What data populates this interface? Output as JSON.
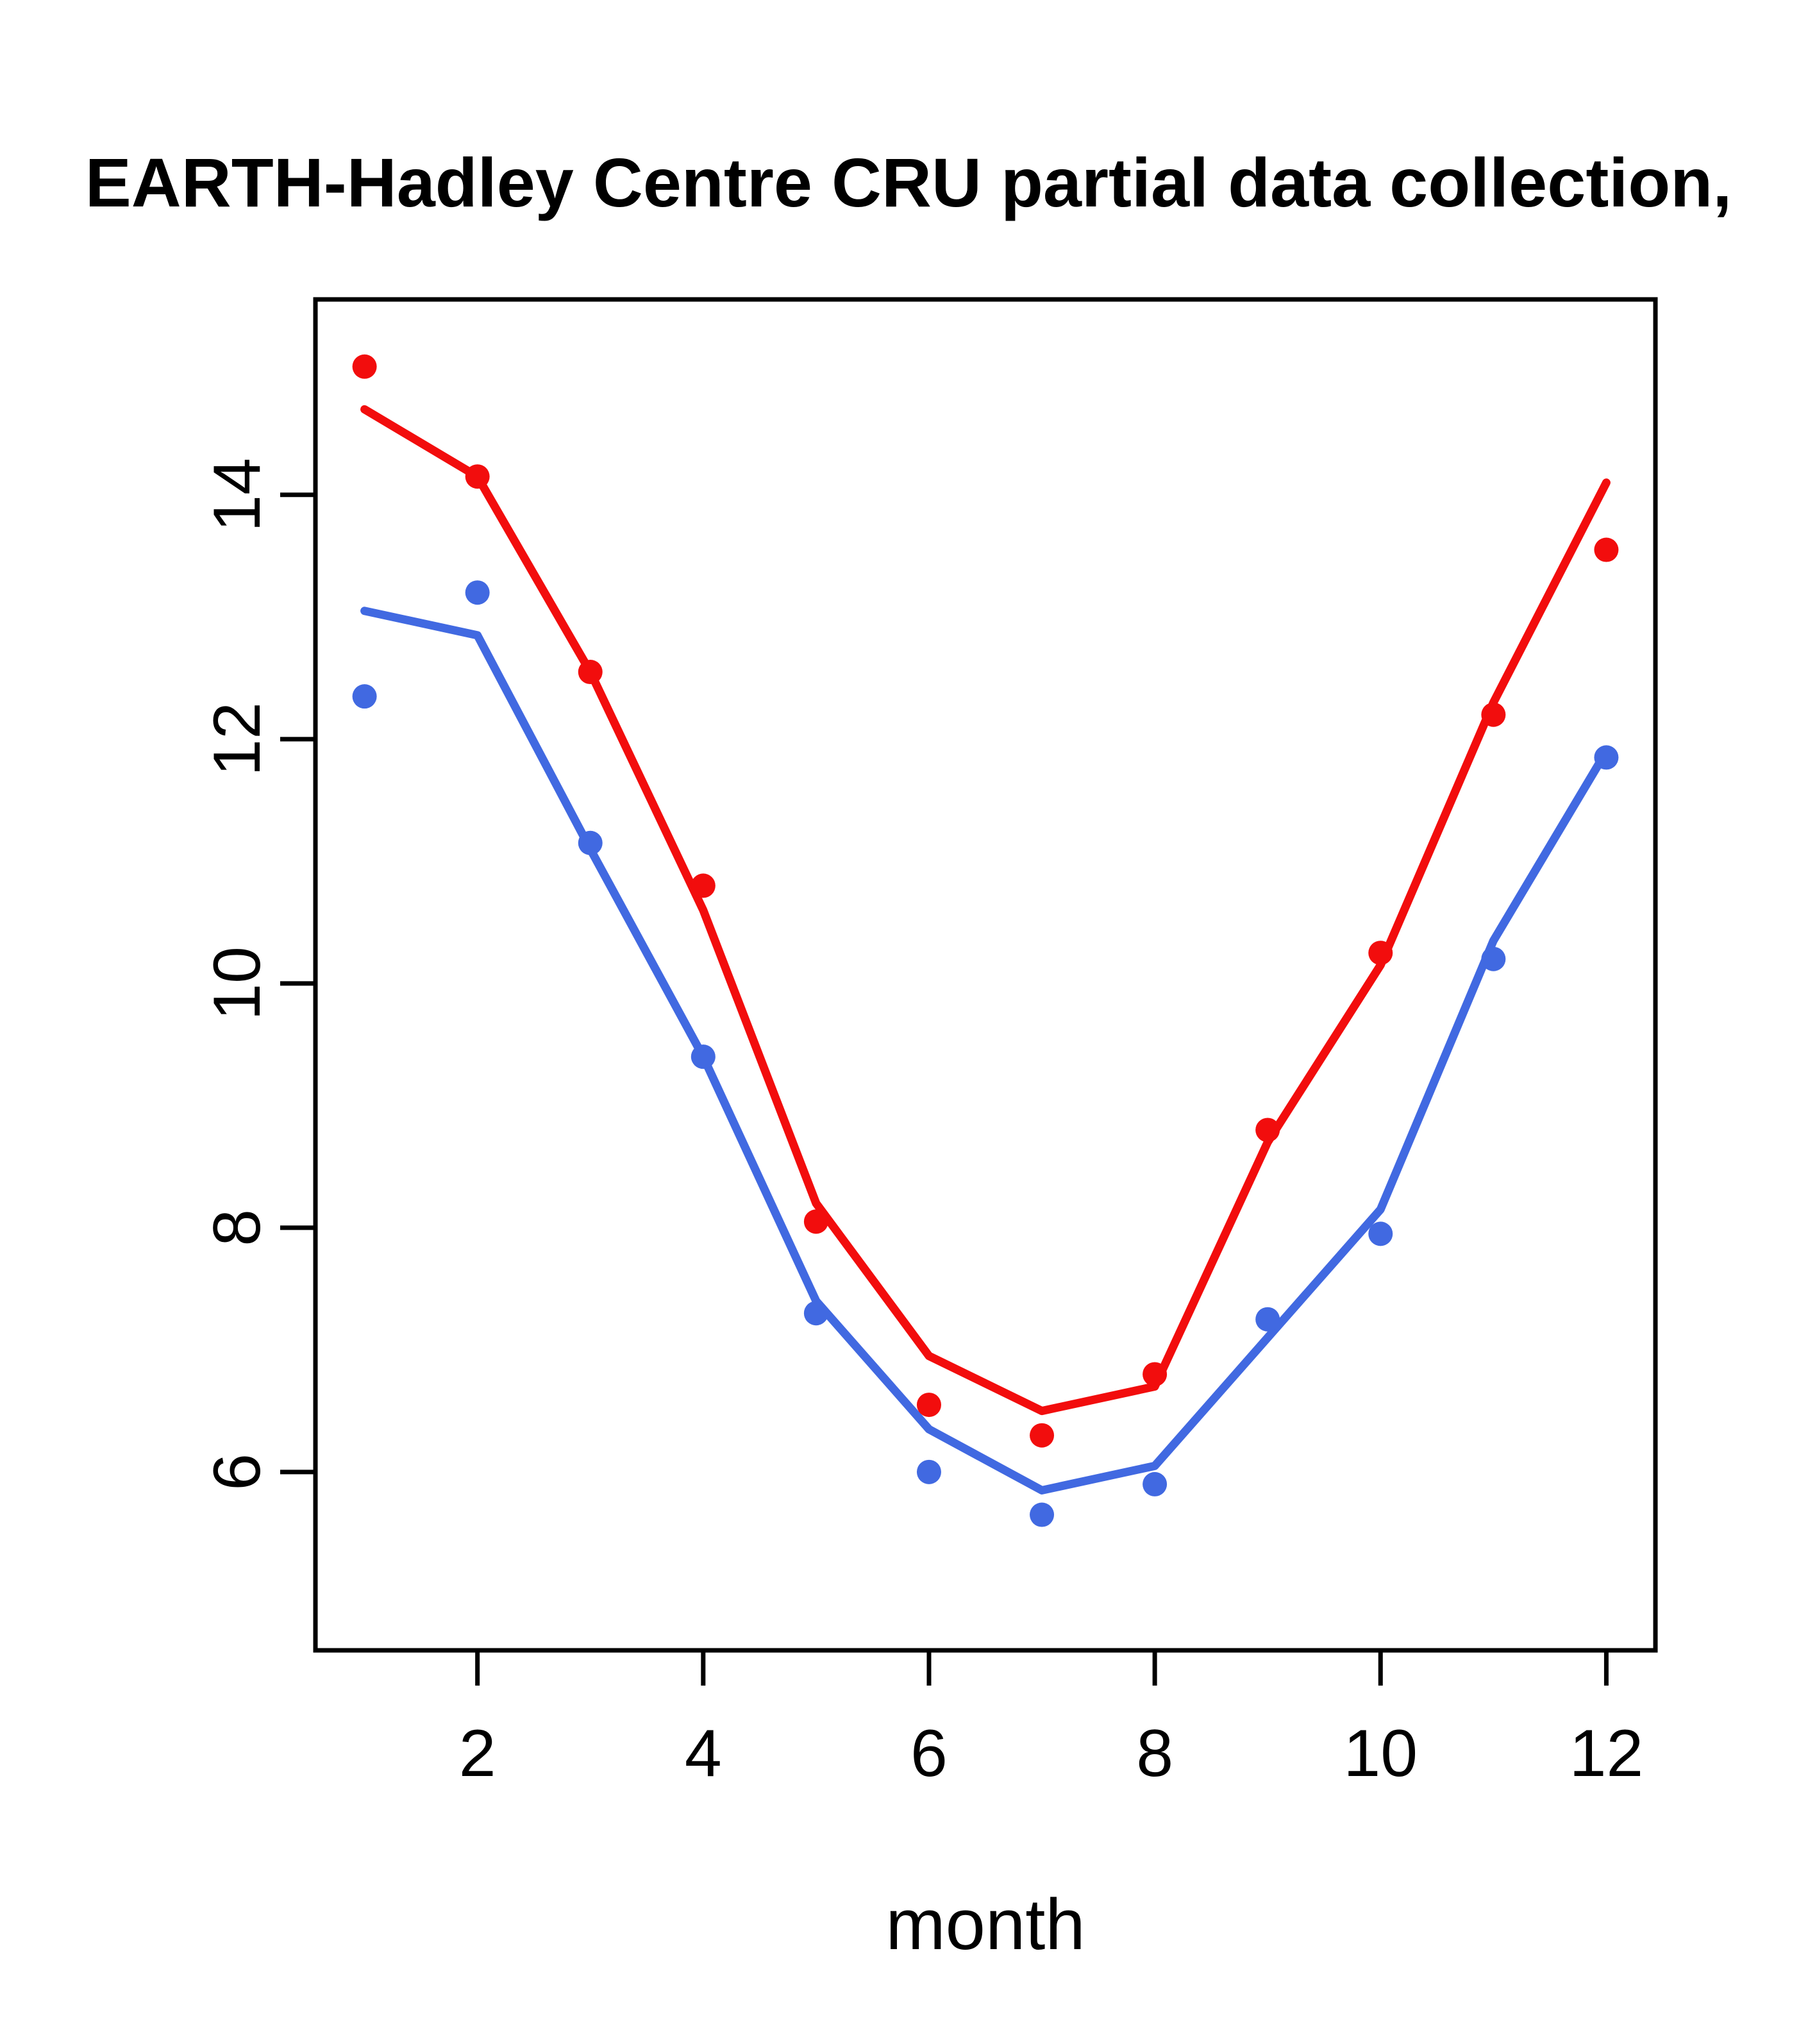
{
  "chart_data": {
    "type": "line-scatter",
    "title": "EARTH-Hadley Centre  CRU partial data collection,",
    "title_note": "title is clipped at both left and right edges of the image",
    "xlabel": "month",
    "ylabel": "",
    "x": [
      1,
      2,
      3,
      4,
      5,
      6,
      7,
      8,
      9,
      10,
      11,
      12
    ],
    "xtick_values": [
      2,
      4,
      6,
      8,
      10,
      12
    ],
    "xtick_labels": [
      "2",
      "4",
      "6",
      "8",
      "10",
      "12"
    ],
    "ytick_values": [
      6,
      8,
      10,
      12,
      14
    ],
    "ytick_labels": [
      "6",
      "8",
      "10",
      "12",
      "14"
    ],
    "xlim": [
      0.565,
      12.435
    ],
    "ylim": [
      4.54,
      15.6
    ],
    "grid": false,
    "legend": "none",
    "background_color": "#ffffff",
    "axis_color": "#000000",
    "series": [
      {
        "name": "red-line",
        "type": "line",
        "color": "#f20d0d",
        "values": [
          14.7,
          14.15,
          12.55,
          10.6,
          8.2,
          6.95,
          6.5,
          6.7,
          8.7,
          10.15,
          12.3,
          14.1
        ]
      },
      {
        "name": "red-points",
        "type": "points",
        "marker": "filled-circle",
        "color": "#f20d0d",
        "values": [
          15.05,
          14.15,
          12.55,
          10.8,
          8.05,
          6.55,
          6.3,
          6.8,
          8.8,
          10.25,
          12.2,
          13.55
        ]
      },
      {
        "name": "blue-line",
        "type": "line",
        "color": "#4169e1",
        "values": [
          13.05,
          12.85,
          11.1,
          9.4,
          7.4,
          6.35,
          5.85,
          6.05,
          7.1,
          8.15,
          10.35,
          11.9
        ]
      },
      {
        "name": "blue-points",
        "type": "points",
        "marker": "filled-circle",
        "color": "#4169e1",
        "values": [
          12.35,
          13.2,
          11.15,
          9.4,
          7.3,
          6.0,
          5.65,
          5.9,
          7.25,
          7.95,
          10.2,
          11.85
        ]
      }
    ]
  }
}
